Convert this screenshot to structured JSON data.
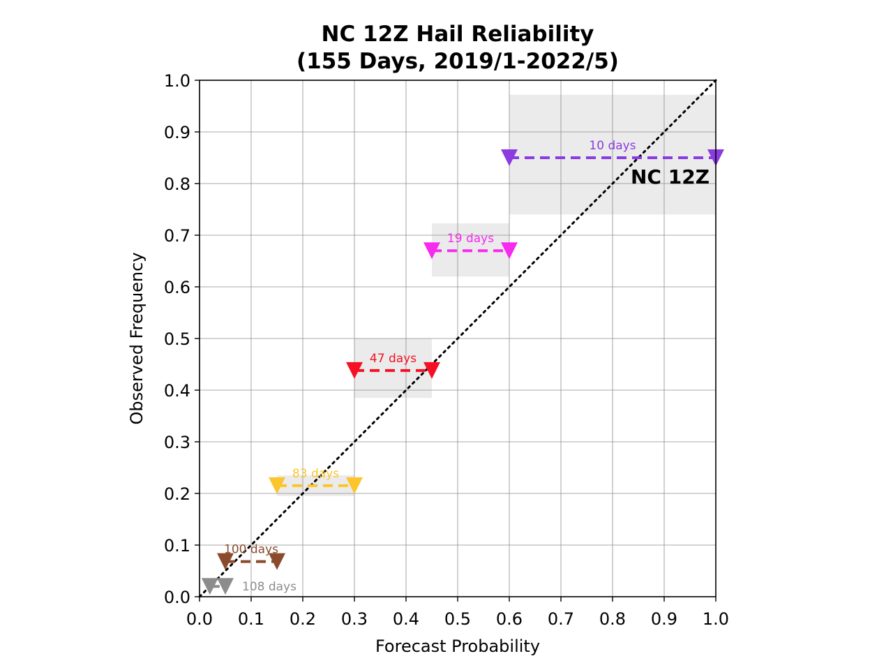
{
  "chart_data": {
    "type": "scatter",
    "title": [
      "NC 12Z Hail Reliability",
      "(155 Days, 2019/1-2022/5)"
    ],
    "xlabel": "Forecast Probability",
    "ylabel": "Observed Frequency",
    "xlim": [
      0,
      1
    ],
    "ylim": [
      0,
      1
    ],
    "xticks": [
      "0.0",
      "0.1",
      "0.2",
      "0.3",
      "0.4",
      "0.5",
      "0.6",
      "0.7",
      "0.8",
      "0.9",
      "1.0"
    ],
    "yticks": [
      "0.0",
      "0.1",
      "0.2",
      "0.3",
      "0.4",
      "0.5",
      "0.6",
      "0.7",
      "0.8",
      "0.9",
      "1.0"
    ],
    "grid": true,
    "diagonal": {
      "from": [
        0,
        0
      ],
      "to": [
        1,
        1
      ],
      "style": "dotted",
      "color": "#000000"
    },
    "region_label": "NC 12Z",
    "bins": [
      {
        "x_start": 0.02,
        "x_end": 0.05,
        "observed": 0.02,
        "days": 108,
        "label": "108 days",
        "color": "#8c8c8c",
        "band": null
      },
      {
        "x_start": 0.05,
        "x_end": 0.15,
        "observed": 0.068,
        "days": 100,
        "label": "100 days",
        "color": "#8b4a2b",
        "band": null
      },
      {
        "x_start": 0.15,
        "x_end": 0.3,
        "observed": 0.215,
        "days": 83,
        "label": "83 days",
        "color": "#fbc52b",
        "band": [
          0.195,
          0.235
        ]
      },
      {
        "x_start": 0.3,
        "x_end": 0.45,
        "observed": 0.438,
        "days": 47,
        "label": "47 days",
        "color": "#f51123",
        "band": [
          0.385,
          0.5
        ]
      },
      {
        "x_start": 0.45,
        "x_end": 0.6,
        "observed": 0.67,
        "days": 19,
        "label": "19 days",
        "color": "#f72af0",
        "band": [
          0.62,
          0.723
        ]
      },
      {
        "x_start": 0.6,
        "x_end": 1.0,
        "observed": 0.85,
        "days": 10,
        "label": "10 days",
        "color": "#8b3be0",
        "band": [
          0.74,
          0.972
        ]
      }
    ]
  }
}
